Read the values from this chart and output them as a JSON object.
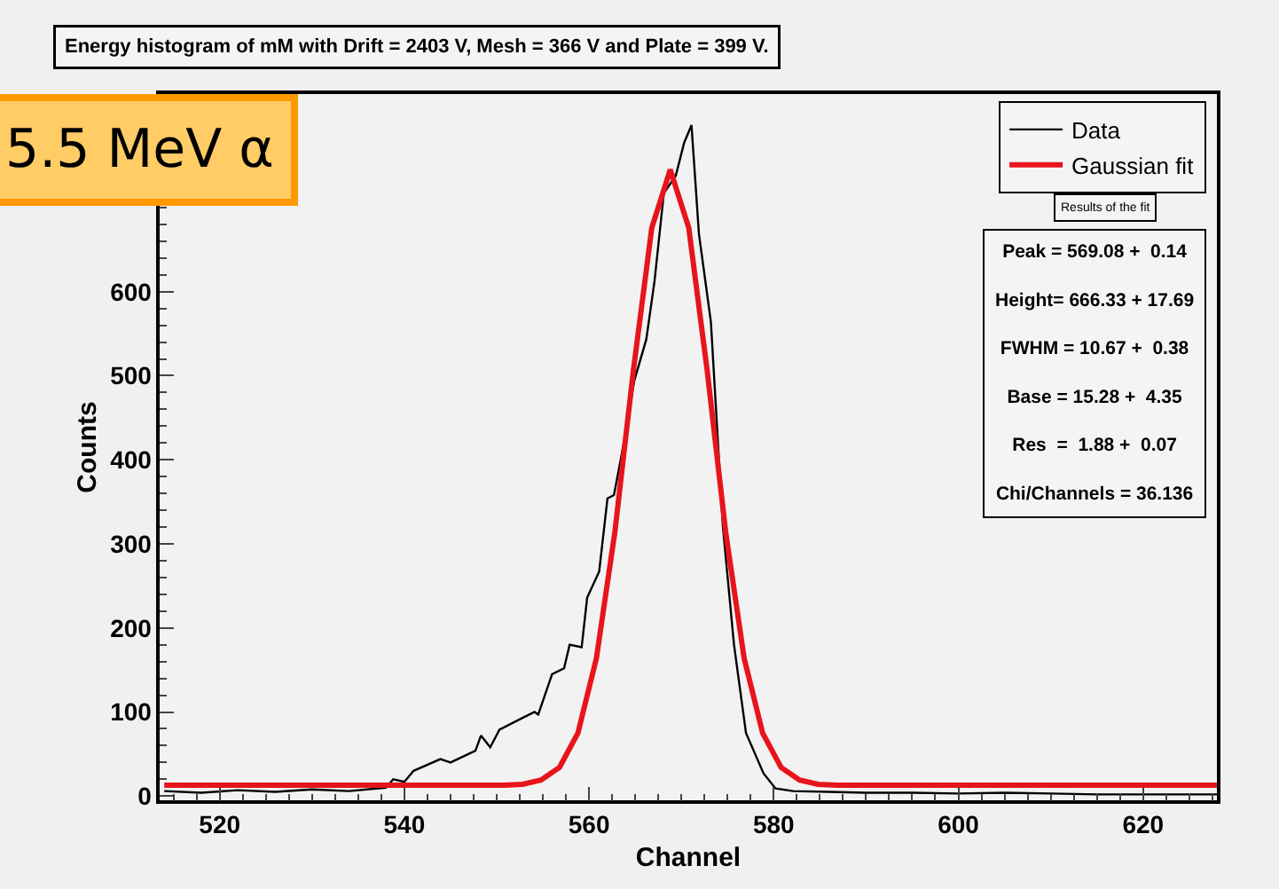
{
  "chart_data": {
    "type": "line",
    "title": "Energy histogram of mM with Drift = 2403 V, Mesh = 366 V and Plate = 399 V.",
    "xlabel": "Channel",
    "ylabel": "Counts",
    "xlim": [
      513.5,
      628
    ],
    "ylim": [
      -5,
      835
    ],
    "xticks": [
      520,
      540,
      560,
      580,
      600,
      620
    ],
    "yticks": [
      0,
      100,
      200,
      300,
      400,
      500,
      600
    ],
    "grid": false,
    "legend": "top right",
    "marker": "none",
    "line_style": "solid",
    "annotations": [
      "5.5 MeV α",
      "Results of the fit",
      "Peak = 569.08 +  0.14",
      "Height= 666.33 + 17.69",
      "FWHM = 10.67 +  0.38",
      "Base = 15.28 +  4.35",
      "Res  =  1.88 +  0.07",
      "Chi/Channels = 36.136"
    ],
    "series": [
      {
        "name": "Data",
        "color": "#000000",
        "x": [
          514,
          518,
          522,
          526,
          530,
          534,
          538,
          538.8,
          540,
          541,
          543.9,
          545,
          547.7,
          548.3,
          549.3,
          550.3,
          552.8,
          554.1,
          554.5,
          556,
          557.3,
          557.9,
          559.2,
          559.8,
          561.1,
          562,
          562.7,
          563.6,
          564.9,
          566.2,
          567.1,
          568.1,
          569.4,
          570.3,
          571.1,
          571.9,
          573.2,
          574.5,
          575.7,
          577,
          578.9,
          580.2,
          582.1,
          586,
          590,
          595,
          600,
          605,
          610,
          615,
          620,
          628
        ],
        "values": [
          6,
          4,
          7,
          5,
          8,
          6,
          10,
          20,
          17,
          30,
          44,
          40,
          54,
          72,
          58,
          79,
          93,
          100,
          97,
          145,
          152,
          180,
          177,
          236,
          267,
          354,
          358,
          410,
          494,
          543,
          613,
          717,
          738,
          777,
          798,
          669,
          564,
          320,
          180,
          75,
          27,
          9,
          6,
          5,
          4,
          4,
          3,
          4,
          3,
          2,
          2,
          2
        ]
      },
      {
        "name": "Gaussian fit",
        "color": "#e8141c",
        "x": [
          514,
          530,
          545,
          550.8,
          552.8,
          554.8,
          556.8,
          558.8,
          560.8,
          562.8,
          564.8,
          566.8,
          568.8,
          570.8,
          572.8,
          574.8,
          576.8,
          578.8,
          580.8,
          582.8,
          584.8,
          586.8,
          600,
          628
        ],
        "values": [
          13,
          13,
          13,
          13,
          14,
          19,
          34,
          75,
          164,
          314,
          506,
          676,
          745,
          676,
          506,
          314,
          164,
          75,
          34,
          19,
          14,
          13,
          13,
          13
        ]
      }
    ]
  }
}
